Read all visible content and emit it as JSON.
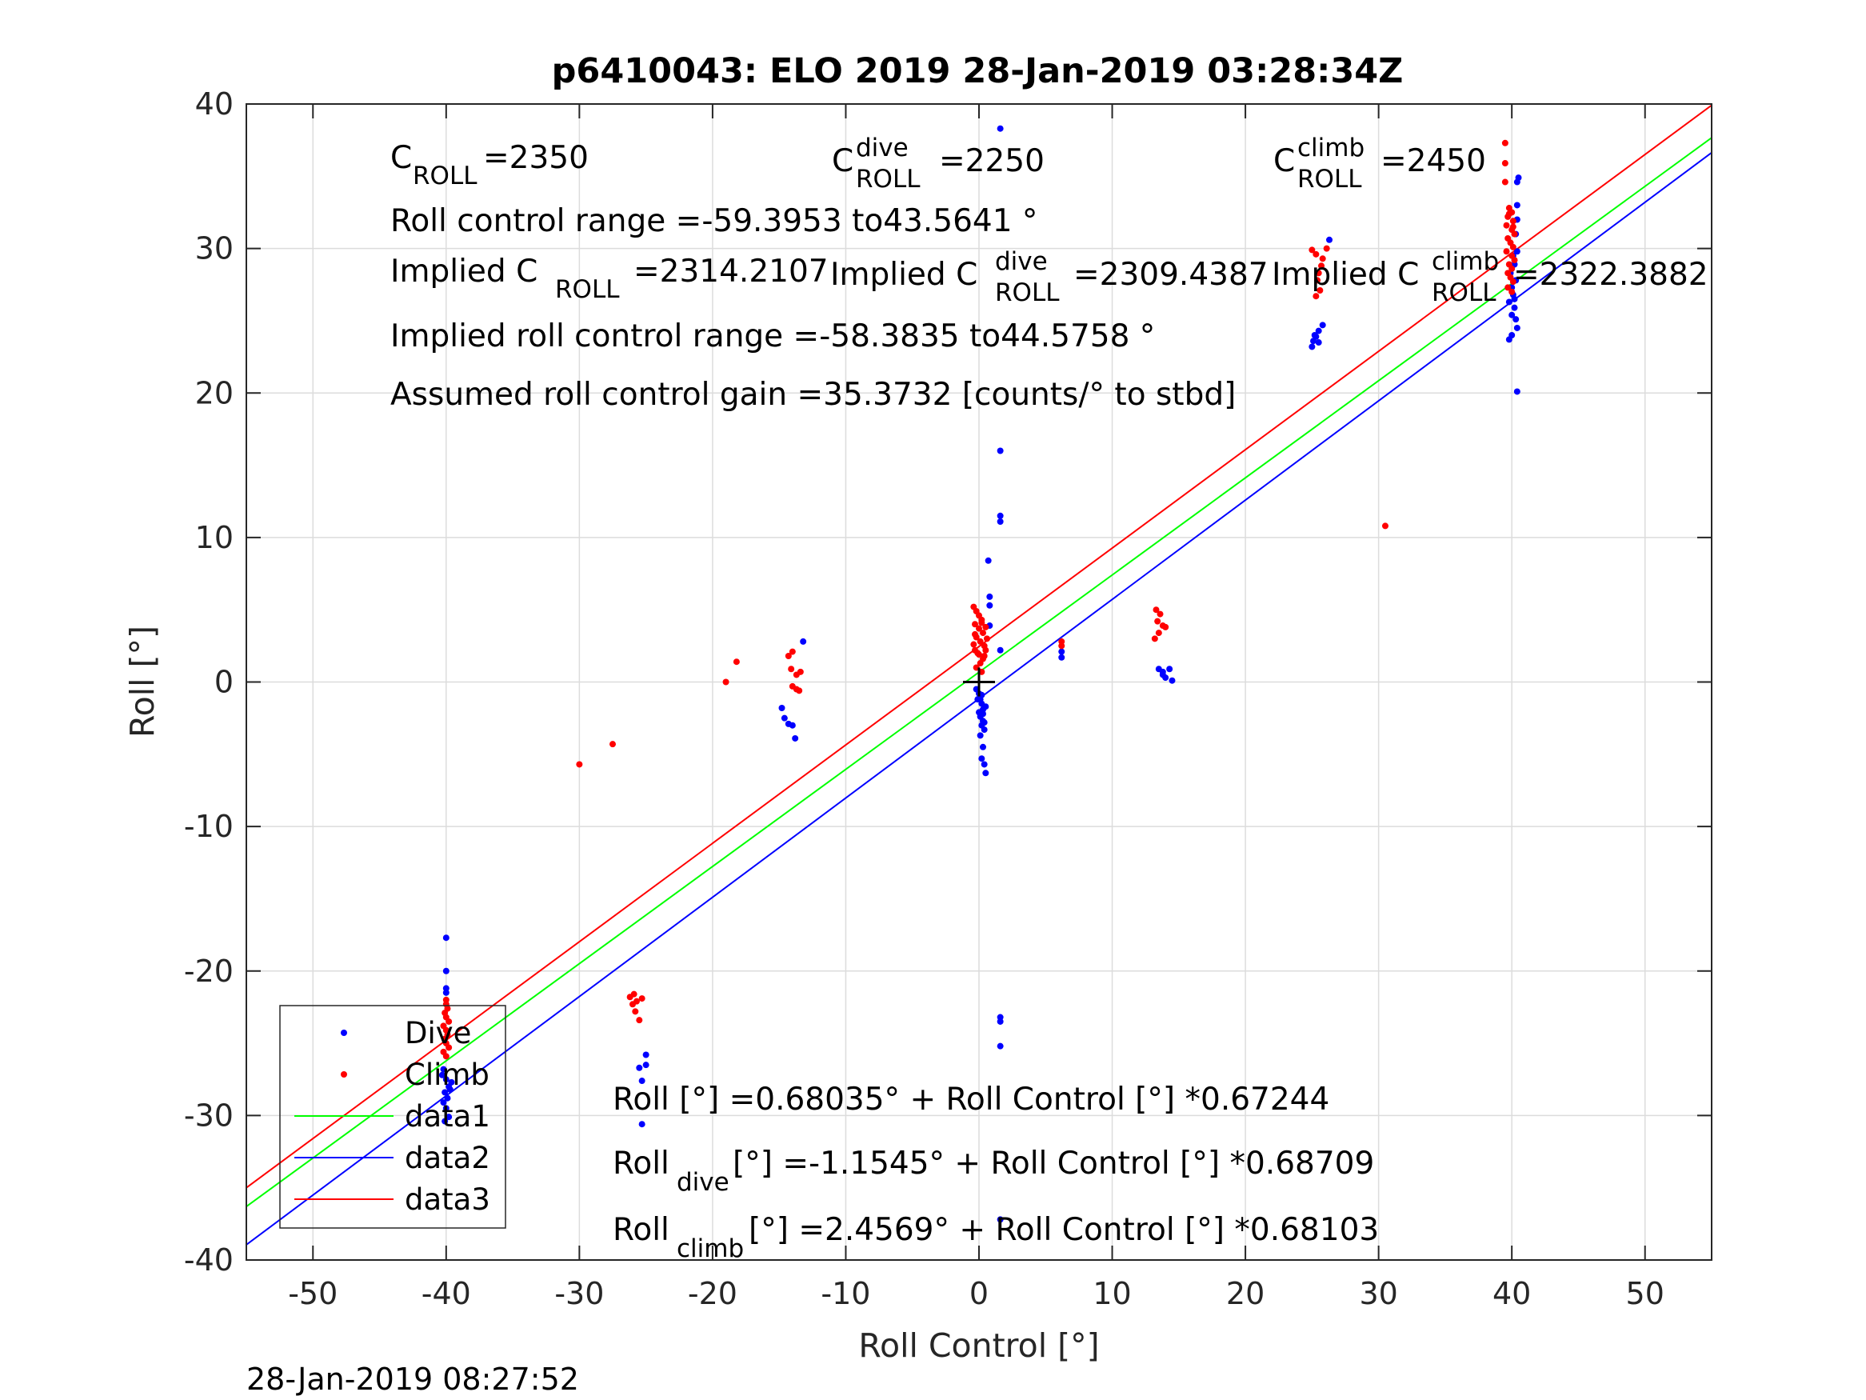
{
  "chart_data": {
    "type": "scatter",
    "title": "p6410043: ELO 2019 28-Jan-2019 03:28:34Z",
    "xlabel": "Roll Control [°]",
    "ylabel": "Roll [°]",
    "xlim": [
      -55,
      55
    ],
    "ylim": [
      -40,
      40
    ],
    "xticks": [
      -50,
      -40,
      -30,
      -20,
      -10,
      0,
      10,
      20,
      30,
      40,
      50
    ],
    "yticks": [
      -40,
      -30,
      -20,
      -10,
      0,
      10,
      20,
      30,
      40
    ],
    "grid": true,
    "legend_position": "bottom-left",
    "footer": "28-Jan-2019 08:27:52",
    "annotations": {
      "c_roll": "C",
      "c_roll_sub": "ROLL",
      "c_roll_value": "=2350",
      "c_dive_sup": "dive",
      "c_dive_value": "=2250",
      "c_climb_sup": "climb",
      "c_climb_value": "=2450",
      "control_range": "Roll control range =-59.3953 to43.5641 °",
      "implied_c_prefix": "Implied C",
      "implied_c_value": "=2314.2107",
      "implied_dive_value": "=2309.4387",
      "implied_climb_value": "=2322.3882",
      "implied_range": "Implied roll control range =-58.3835 to44.5758 °",
      "gain": "Assumed roll control gain =35.3732 [counts/° to stbd]",
      "fit_prefix": "Roll",
      "fit_all": "Roll [°] =0.68035° + Roll Control [°] *0.67244",
      "fit_dive_sub": "dive",
      "fit_dive_rest": " [°] =-1.1545° + Roll Control [°] *0.68709",
      "fit_climb_sub": "climb",
      "fit_climb_rest": " [°] =2.4569° + Roll Control [°] *0.68103"
    },
    "lines": [
      {
        "name": "data1",
        "color": "#00ff00",
        "intercept": 0.68035,
        "slope": 0.67244
      },
      {
        "name": "data2",
        "color": "#0000ff",
        "intercept": -1.1545,
        "slope": 0.68709
      },
      {
        "name": "data3",
        "color": "#ff0000",
        "intercept": 2.4569,
        "slope": 0.68103
      }
    ],
    "series": [
      {
        "name": "Dive",
        "color": "#0000ff",
        "points": [
          [
            -40,
            -17.7
          ],
          [
            -40,
            -20
          ],
          [
            -40,
            -21.2
          ],
          [
            -40,
            -21.5
          ],
          [
            -40.2,
            -26.8
          ],
          [
            -40,
            -27.5
          ],
          [
            -39.8,
            -28
          ],
          [
            -40.1,
            -28.4
          ],
          [
            -39.9,
            -28.8
          ],
          [
            -40.2,
            -29.1
          ],
          [
            -39.7,
            -28.2
          ],
          [
            -40,
            -29.5
          ],
          [
            -39.8,
            -30.1
          ],
          [
            -40.1,
            -30.4
          ],
          [
            -39.6,
            -27.7
          ],
          [
            -40.3,
            -27.2
          ],
          [
            -25.5,
            -26.7
          ],
          [
            -25,
            -26.5
          ],
          [
            -25.3,
            -27.6
          ],
          [
            -25,
            -25.8
          ],
          [
            -25.3,
            -30.6
          ],
          [
            -14.8,
            -1.8
          ],
          [
            -14.6,
            -2.5
          ],
          [
            -14.3,
            -2.9
          ],
          [
            -14,
            -3
          ],
          [
            -13.8,
            -3.9
          ],
          [
            -13.2,
            2.8
          ],
          [
            -0.2,
            -0.5
          ],
          [
            0,
            -0.8
          ],
          [
            0.1,
            -1.2
          ],
          [
            0.2,
            -1.5
          ],
          [
            0.3,
            -1.9
          ],
          [
            0,
            -2.1
          ],
          [
            0.1,
            -2.4
          ],
          [
            0.3,
            -2.7
          ],
          [
            0.2,
            -3
          ],
          [
            0.4,
            -3.3
          ],
          [
            0.1,
            -3.7
          ],
          [
            0.3,
            -4.5
          ],
          [
            0.2,
            -5.3
          ],
          [
            0.4,
            -5.7
          ],
          [
            0.5,
            -6.3
          ],
          [
            0.3,
            -2.2
          ],
          [
            0.5,
            -1.7
          ],
          [
            -0.1,
            -1.2
          ],
          [
            0.2,
            -0.9
          ],
          [
            0.4,
            -2.8
          ],
          [
            0.8,
            3.9
          ],
          [
            0.8,
            5.3
          ],
          [
            0.8,
            5.9
          ],
          [
            0.7,
            8.4
          ],
          [
            1.6,
            11.1
          ],
          [
            1.6,
            11.5
          ],
          [
            1.6,
            16
          ],
          [
            1.6,
            38.3
          ],
          [
            1.6,
            2.2
          ],
          [
            1.6,
            -23.2
          ],
          [
            1.6,
            -23.5
          ],
          [
            1.6,
            -25.2
          ],
          [
            1.6,
            -37.2
          ],
          [
            6.2,
            1.7
          ],
          [
            6.2,
            2.1
          ],
          [
            13.5,
            0.9
          ],
          [
            13.8,
            0.5
          ],
          [
            14,
            0.3
          ],
          [
            14.3,
            0.9
          ],
          [
            14.5,
            0.1
          ],
          [
            13.8,
            0.7
          ],
          [
            25,
            23.2
          ],
          [
            25.1,
            23.6
          ],
          [
            25.3,
            23.9
          ],
          [
            25.5,
            24.3
          ],
          [
            25.8,
            24.7
          ],
          [
            25.5,
            23.5
          ],
          [
            25.2,
            24
          ],
          [
            26.3,
            30.6
          ],
          [
            40,
            25.4
          ],
          [
            40.2,
            25.9
          ],
          [
            39.8,
            26.3
          ],
          [
            40.1,
            26.8
          ],
          [
            40,
            27.3
          ],
          [
            40.3,
            27.8
          ],
          [
            39.9,
            28.3
          ],
          [
            40.2,
            28.9
          ],
          [
            40.1,
            29.5
          ],
          [
            40,
            24
          ],
          [
            39.8,
            23.7
          ],
          [
            40.3,
            31
          ],
          [
            40.4,
            32
          ],
          [
            40.4,
            33
          ],
          [
            40.4,
            34.6
          ],
          [
            40.5,
            34.9
          ],
          [
            40.4,
            29.8
          ],
          [
            40.4,
            24.5
          ],
          [
            40.4,
            20.1
          ],
          [
            40.2,
            26.5
          ],
          [
            40.3,
            25.1
          ]
        ]
      },
      {
        "name": "Climb",
        "color": "#ff0000",
        "points": [
          [
            -40,
            -22
          ],
          [
            -40,
            -22.3
          ],
          [
            -39.9,
            -22.6
          ],
          [
            -40.1,
            -22.9
          ],
          [
            -40,
            -23.2
          ],
          [
            -39.8,
            -23.5
          ],
          [
            -40.2,
            -23.8
          ],
          [
            -40,
            -24.1
          ],
          [
            -39.9,
            -24.4
          ],
          [
            -40.1,
            -24.7
          ],
          [
            -40,
            -25
          ],
          [
            -39.8,
            -25.3
          ],
          [
            -40.2,
            -25.6
          ],
          [
            -40,
            -25.9
          ],
          [
            -26.2,
            -21.8
          ],
          [
            -26,
            -22.3
          ],
          [
            -25.7,
            -22.1
          ],
          [
            -25.8,
            -22.8
          ],
          [
            -25.5,
            -23.4
          ],
          [
            -25.9,
            -21.6
          ],
          [
            -25.3,
            -21.9
          ],
          [
            -30,
            -5.7
          ],
          [
            -27.5,
            -4.3
          ],
          [
            -19,
            0
          ],
          [
            -18.2,
            1.4
          ],
          [
            -14.3,
            1.8
          ],
          [
            -14,
            2.1
          ],
          [
            -14.1,
            0.9
          ],
          [
            -13.7,
            0.5
          ],
          [
            -13.4,
            0.7
          ],
          [
            -14,
            -0.3
          ],
          [
            -13.7,
            -0.5
          ],
          [
            -13.5,
            -0.6
          ],
          [
            -0.4,
            5.2
          ],
          [
            -0.2,
            4.9
          ],
          [
            0,
            4.6
          ],
          [
            0.2,
            4.3
          ],
          [
            -0.3,
            4
          ],
          [
            0,
            3.7
          ],
          [
            0.3,
            3.4
          ],
          [
            -0.2,
            3.1
          ],
          [
            0.1,
            2.8
          ],
          [
            0.4,
            2.5
          ],
          [
            -0.3,
            2.2
          ],
          [
            0,
            1.9
          ],
          [
            0.3,
            1.6
          ],
          [
            0.1,
            1.3
          ],
          [
            -0.2,
            1
          ],
          [
            0.2,
            0.7
          ],
          [
            0.5,
            3.8
          ],
          [
            0.6,
            3
          ],
          [
            -0.4,
            2.6
          ],
          [
            0.4,
            1.8
          ],
          [
            -0.1,
            2
          ],
          [
            0.2,
            4.1
          ],
          [
            0.5,
            2.2
          ],
          [
            -0.3,
            3.3
          ],
          [
            6.2,
            2.5
          ],
          [
            6.2,
            2.8
          ],
          [
            13.3,
            5
          ],
          [
            13.6,
            4.7
          ],
          [
            13.4,
            4.2
          ],
          [
            13.8,
            3.9
          ],
          [
            13.5,
            3.4
          ],
          [
            13.2,
            3
          ],
          [
            14,
            3.8
          ],
          [
            25,
            29.9
          ],
          [
            25.3,
            29.6
          ],
          [
            25.5,
            28.3
          ],
          [
            25.4,
            27.8
          ],
          [
            25.6,
            27.1
          ],
          [
            25.3,
            26.7
          ],
          [
            25.8,
            29.3
          ],
          [
            26.1,
            30
          ],
          [
            25.7,
            28.8
          ],
          [
            30.5,
            10.8
          ],
          [
            39.5,
            37.3
          ],
          [
            39.5,
            35.9
          ],
          [
            39.5,
            34.6
          ],
          [
            39.8,
            32.8
          ],
          [
            40,
            32.5
          ],
          [
            39.7,
            32.2
          ],
          [
            40.1,
            31.9
          ],
          [
            39.6,
            31.6
          ],
          [
            40,
            31.3
          ],
          [
            40.2,
            31
          ],
          [
            39.7,
            30.7
          ],
          [
            39.9,
            30.4
          ],
          [
            40.1,
            30.1
          ],
          [
            39.6,
            29.8
          ],
          [
            40,
            29.5
          ],
          [
            40.2,
            29.2
          ],
          [
            39.8,
            28.9
          ],
          [
            40,
            28.6
          ],
          [
            39.7,
            28.3
          ],
          [
            39.9,
            28
          ],
          [
            40.1,
            27.7
          ],
          [
            39.7,
            27.3
          ],
          [
            40,
            27
          ],
          [
            39.8,
            32.4
          ],
          [
            40.1,
            31.5
          ]
        ]
      }
    ]
  }
}
